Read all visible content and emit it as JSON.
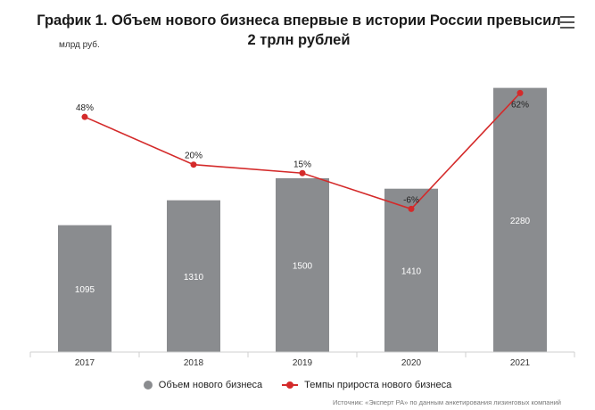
{
  "title": "График 1. Объем нового бизнеса впервые в истории России превысил 2 трлн рублей",
  "unit": "млрд руб.",
  "menu_icon": "hamburger-menu-icon",
  "source": "Источник: «Эксперт РА» по данным анкетирования лизинговых компаний",
  "colors": {
    "bar": "#8a8c8f",
    "line": "#d42a2a",
    "axis": "#cfcfcf"
  },
  "chart_data": {
    "type": "bar",
    "categories": [
      "2017",
      "2018",
      "2019",
      "2020",
      "2021"
    ],
    "series": [
      {
        "name": "Объем нового бизнеса",
        "type": "bar",
        "values": [
          1095,
          1310,
          1500,
          1410,
          2280
        ],
        "labels": [
          "1095",
          "1310",
          "1500",
          "1410",
          "2280"
        ]
      },
      {
        "name": "Темпы прироста нового бизнеса",
        "type": "line",
        "values": [
          48,
          20,
          15,
          -6,
          62
        ],
        "labels": [
          "48%",
          "20%",
          "15%",
          "-6%",
          "62%"
        ]
      }
    ],
    "ylabel": "млрд руб.",
    "ylim": [
      0,
      2500
    ],
    "y2lim": [
      -90,
      80
    ],
    "grid": false,
    "legend": "bottom"
  }
}
